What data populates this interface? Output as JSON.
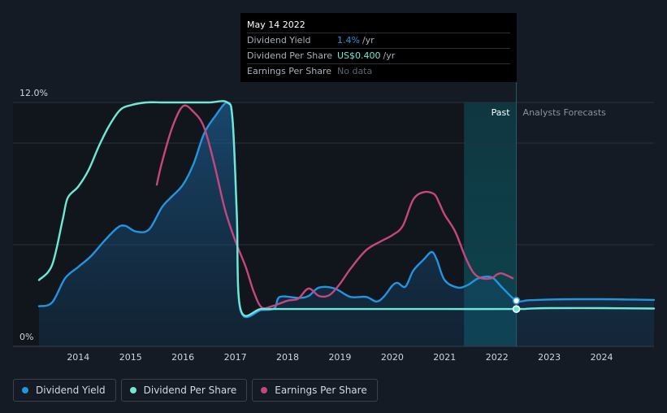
{
  "tooltip": {
    "date": "May 14 2022",
    "rows": [
      {
        "label": "Dividend Yield",
        "value": "1.4%",
        "unit": "/yr"
      },
      {
        "label": "Dividend Per Share",
        "value": "US$0.400",
        "unit": "/yr"
      },
      {
        "label": "Earnings Per Share",
        "value": "No data",
        "unit": ""
      }
    ]
  },
  "region_labels": {
    "past": "Past",
    "forecast": "Analysts Forecasts"
  },
  "legend": [
    {
      "label": "Dividend Yield",
      "color": "#2394df"
    },
    {
      "label": "Dividend Per Share",
      "color": "#6ee8d4"
    },
    {
      "label": "Earnings Per Share",
      "color": "#c6467e"
    }
  ],
  "chart_data": {
    "type": "line",
    "y_ticks": [
      {
        "value": 12,
        "label": "12.0%"
      },
      {
        "value": 0,
        "label": "0%"
      }
    ],
    "ylim": [
      0,
      12
    ],
    "xlim": [
      2013.25,
      2025.0
    ],
    "x_ticks": [
      2014,
      2015,
      2016,
      2017,
      2018,
      2019,
      2020,
      2021,
      2022,
      2023,
      2024
    ],
    "past_end": 2022.37,
    "highlight_start": 2021.37,
    "grid": true,
    "series": [
      {
        "name": "Dividend Yield",
        "color": "#2394df",
        "fill": true,
        "x": [
          2013.25,
          2013.5,
          2013.75,
          2014.0,
          2014.25,
          2014.5,
          2014.75,
          2014.9,
          2015.1,
          2015.35,
          2015.6,
          2015.8,
          2016.0,
          2016.2,
          2016.4,
          2016.6,
          2016.85,
          2016.95,
          2017.03,
          2017.1,
          2017.5,
          2017.75,
          2017.85,
          2018.2,
          2018.4,
          2018.6,
          2018.9,
          2019.2,
          2019.5,
          2019.7,
          2019.85,
          2020.0,
          2020.1,
          2020.25,
          2020.4,
          2020.6,
          2020.75,
          2020.85,
          2021.0,
          2021.25,
          2021.45,
          2021.65,
          2021.9,
          2022.1,
          2022.37,
          2022.6,
          2023.0,
          2023.5,
          2024.0,
          2024.5,
          2025.0
        ],
        "y": [
          1.1,
          1.3,
          2.6,
          3.2,
          3.8,
          4.6,
          5.3,
          5.4,
          5.1,
          5.2,
          6.4,
          7.0,
          7.6,
          8.7,
          10.3,
          11.2,
          12.0,
          11.0,
          6.0,
          0.9,
          0.9,
          1.0,
          1.6,
          1.55,
          1.65,
          2.1,
          2.05,
          1.6,
          1.6,
          1.35,
          1.65,
          2.2,
          2.35,
          2.15,
          3.0,
          3.6,
          4.0,
          3.6,
          2.5,
          2.1,
          2.25,
          2.6,
          2.65,
          2.1,
          1.4,
          1.42,
          1.46,
          1.48,
          1.48,
          1.46,
          1.44
        ]
      },
      {
        "name": "Dividend Per Share",
        "color": "#6ee8d4",
        "fill": false,
        "x": [
          2013.25,
          2013.5,
          2013.7,
          2013.8,
          2014.0,
          2014.2,
          2014.4,
          2014.6,
          2014.8,
          2015.0,
          2015.3,
          2015.6,
          2016.0,
          2016.5,
          2016.85,
          2016.95,
          2017.03,
          2017.1,
          2017.5,
          2018.0,
          2019.0,
          2020.0,
          2021.0,
          2022.37,
          2022.6,
          2023.0,
          2024.0,
          2025.0
        ],
        "y": [
          2.5,
          3.3,
          5.7,
          6.9,
          7.5,
          8.4,
          9.7,
          10.8,
          11.6,
          11.85,
          12.0,
          12.0,
          12.0,
          12.0,
          12.0,
          11.0,
          6.0,
          0.95,
          0.95,
          0.95,
          0.95,
          0.95,
          0.95,
          0.95,
          0.97,
          1.0,
          1.0,
          0.98
        ]
      },
      {
        "name": "Earnings Per Share",
        "color": "#c6467e",
        "fill": false,
        "x": [
          2015.5,
          2015.6,
          2015.8,
          2016.0,
          2016.2,
          2016.4,
          2016.6,
          2016.8,
          2017.0,
          2017.2,
          2017.35,
          2017.5,
          2017.7,
          2018.0,
          2018.2,
          2018.4,
          2018.6,
          2018.8,
          2019.0,
          2019.2,
          2019.5,
          2019.8,
          2020.0,
          2020.2,
          2020.4,
          2020.6,
          2020.8,
          2020.9,
          2021.0,
          2021.2,
          2021.4,
          2021.55,
          2021.7,
          2021.9,
          2022.0,
          2022.1,
          2022.3
        ],
        "y": [
          7.6,
          8.8,
          10.7,
          11.8,
          11.5,
          10.7,
          8.7,
          6.3,
          4.6,
          3.2,
          1.9,
          1.05,
          1.1,
          1.4,
          1.5,
          2.05,
          1.65,
          1.7,
          2.3,
          3.1,
          4.1,
          4.6,
          4.9,
          5.4,
          6.8,
          7.2,
          7.1,
          6.6,
          6.0,
          5.1,
          3.7,
          2.9,
          2.6,
          2.6,
          2.8,
          2.85,
          2.6
        ]
      }
    ],
    "markers": [
      {
        "series": "Dividend Yield",
        "x": 2022.37,
        "y": 1.4
      },
      {
        "series": "Dividend Per Share",
        "x": 2022.37,
        "y": 0.95
      }
    ]
  }
}
